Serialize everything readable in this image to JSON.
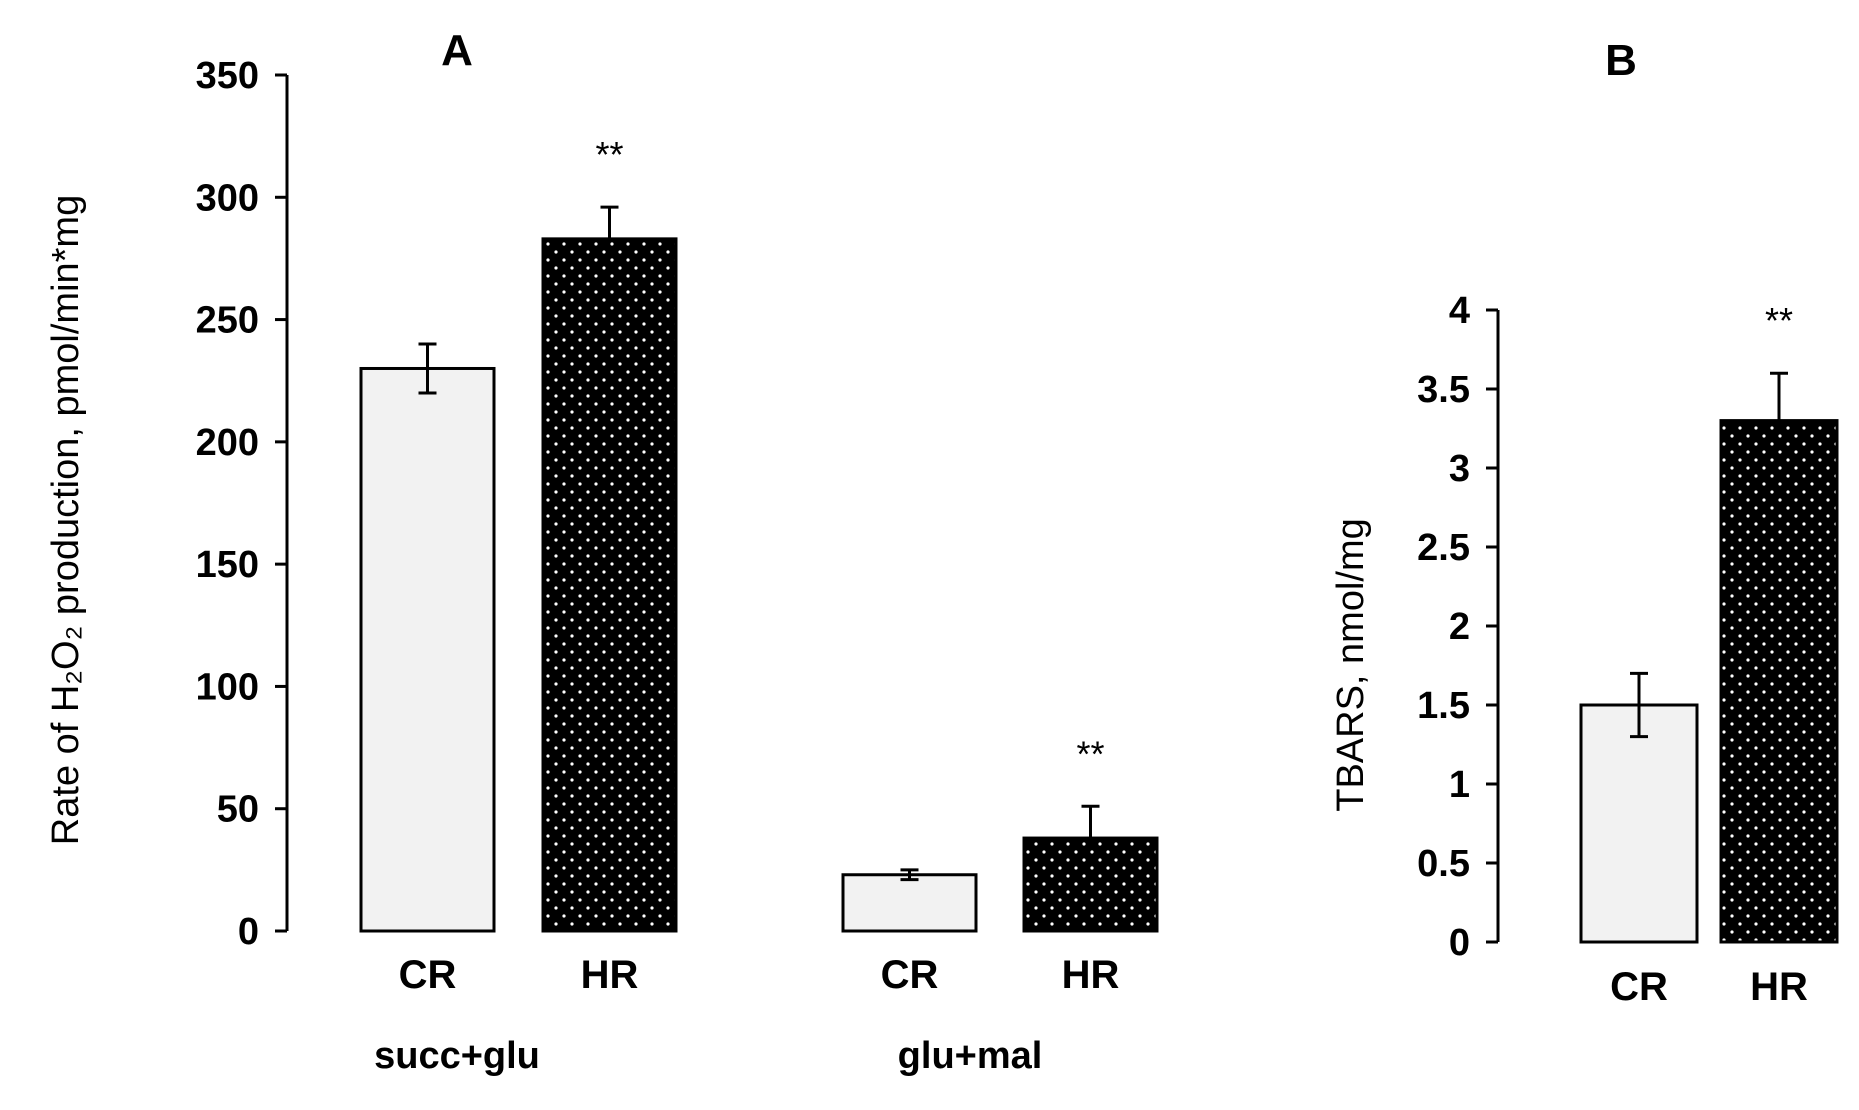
{
  "colors": {
    "axis": "#000000",
    "bar_light": "#f2f2f2",
    "bar_dark": "#000000",
    "dot": "#ffffff"
  },
  "chart_data": [
    {
      "panel": "A",
      "type": "bar",
      "ylabel": "Rate of H₂O₂ production, pmol/min*mg",
      "ylim": [
        0,
        350
      ],
      "yticks": [
        "0",
        "50",
        "100",
        "150",
        "200",
        "250",
        "300",
        "350"
      ],
      "groups": [
        {
          "name": "succ+glu",
          "categories": [
            "CR",
            "HR"
          ],
          "values": [
            230,
            283
          ],
          "errors": [
            10,
            13
          ],
          "significance": [
            "",
            "**"
          ]
        },
        {
          "name": "glu+mal",
          "categories": [
            "CR",
            "HR"
          ],
          "values": [
            23,
            38
          ],
          "errors": [
            2,
            13
          ],
          "significance": [
            "",
            "**"
          ]
        }
      ]
    },
    {
      "panel": "B",
      "type": "bar",
      "ylabel": "TBARS, nmol/mg",
      "ylim": [
        0,
        4
      ],
      "yticks": [
        "0",
        "0.5",
        "1",
        "1.5",
        "2",
        "2.5",
        "3",
        "3.5",
        "4"
      ],
      "categories": [
        "CR",
        "HR"
      ],
      "values": [
        1.5,
        3.3
      ],
      "errors": [
        0.2,
        0.3
      ],
      "significance": [
        "",
        "**"
      ]
    }
  ]
}
